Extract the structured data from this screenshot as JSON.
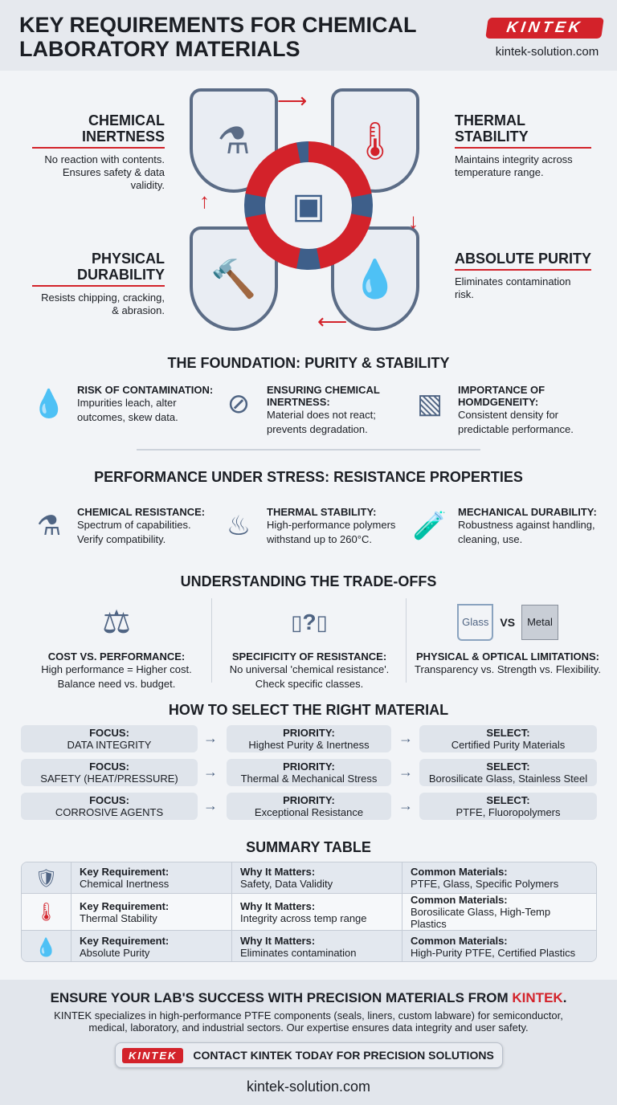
{
  "header": {
    "title": "KEY REQUIREMENTS FOR CHEMICAL LABORATORY MATERIALS",
    "logo": "KINTEK",
    "website": "kintek-solution.com"
  },
  "requirements": [
    {
      "title": "CHEMICAL INERTNESS",
      "desc": "No reaction with contents. Ensures safety & data validity.",
      "icon": "flask-prohibited-icon"
    },
    {
      "title": "THERMAL STABILITY",
      "desc": "Maintains integrity across temperature range.",
      "icon": "thermometer-icon"
    },
    {
      "title": "PHYSICAL DURABILITY",
      "desc": "Resists chipping, cracking, & abrasion.",
      "icon": "hammer-icon"
    },
    {
      "title": "ABSOLUTE PURITY",
      "desc": "Eliminates contamination risk.",
      "icon": "droplet-icon"
    }
  ],
  "foundation": {
    "heading": "THE FOUNDATION: PURITY & STABILITY",
    "items": [
      {
        "title": "RISK OF CONTAMINATION:",
        "desc": "Impurities leach, alter outcomes, skew data."
      },
      {
        "title": "ENSURING CHEMICAL INERTNESS:",
        "desc": "Material does not react; prevents degradation."
      },
      {
        "title": "IMPORTANCE OF HOMDGENEITY:",
        "desc": "Consistent density for predictable performance."
      }
    ]
  },
  "performance": {
    "heading": "PERFORMANCE UNDER STRESS: RESISTANCE PROPERTIES",
    "items": [
      {
        "title": "CHEMICAL RESISTANCE:",
        "desc": "Spectrum of capabilities. Verify compatibility."
      },
      {
        "title": "THERMAL STABILITY:",
        "desc": "High-performance polymers withstand up to 260°C."
      },
      {
        "title": "MECHANICAL DURABILITY:",
        "desc": "Robustness against handling, cleaning, use."
      }
    ]
  },
  "tradeoffs": {
    "heading": "UNDERSTANDING THE TRADE-OFFS",
    "items": [
      {
        "title": "COST VS. PERFORMANCE:",
        "desc": "High performance = Higher cost. Balance need vs. budget."
      },
      {
        "title": "SPECIFICITY OF RESISTANCE:",
        "desc": "No universal 'chemical resistance'. Check specific classes."
      },
      {
        "title": "PHYSICAL & OPTICAL LIMITATIONS:",
        "desc": "Transparency vs. Strength vs. Flexibility."
      }
    ],
    "icon_labels": {
      "q": "?",
      "glass": "Glass",
      "vs": "VS",
      "metal": "Metal"
    }
  },
  "select": {
    "heading": "HOW TO SELECT THE RIGHT MATERIAL",
    "rows": [
      {
        "focus_label": "FOCUS:",
        "focus": "DATA INTEGRITY",
        "priority_label": "PRIORITY:",
        "priority": "Highest Purity & Inertness",
        "select_label": "SELECT:",
        "select": "Certified Purity Materials"
      },
      {
        "focus_label": "FOCUS:",
        "focus": "SAFETY (HEAT/PRESSURE)",
        "priority_label": "PRIORITY:",
        "priority": "Thermal & Mechanical Stress",
        "select_label": "SELECT:",
        "select": "Borosilicate Glass, Stainless Steel"
      },
      {
        "focus_label": "FOCUS:",
        "focus": "CORROSIVE AGENTS",
        "priority_label": "PRIORITY:",
        "priority": "Exceptional Resistance",
        "select_label": "SELECT:",
        "select": "PTFE, Fluoropolymers"
      }
    ]
  },
  "summary": {
    "heading": "SUMMARY TABLE",
    "rows": [
      {
        "req_label": "Key Requirement:",
        "req": "Chemical Inertness",
        "why_label": "Why It Matters:",
        "why": "Safety, Data Validity",
        "mat_label": "Common Materials:",
        "mat": "PTFE, Glass, Specific Polymers"
      },
      {
        "req_label": "Key Requirement:",
        "req": "Thermal Stability",
        "why_label": "Why It Matters:",
        "why": "Integrity across temp range",
        "mat_label": "Common Materials:",
        "mat": "Borosilicate Glass, High-Temp Plastics"
      },
      {
        "req_label": "Key Requirement:",
        "req": "Absolute Purity",
        "why_label": "Why It Matters:",
        "why": "Eliminates contamination",
        "mat_label": "Common Materials:",
        "mat": "High-Purity PTFE, Certified Plastics"
      }
    ]
  },
  "footer": {
    "heading_pre": "ENSURE YOUR LAB'S SUCCESS WITH PRECISION MATERIALS FROM ",
    "heading_brand": "KINTEK",
    "heading_post": ".",
    "text": "KINTEK specializes in high-performance PTFE components (seals, liners, custom labware) for semiconductor, medical, laboratory, and industrial sectors. Our expertise ensures data integrity and user safety.",
    "cta_logo": "KINTEK",
    "cta": "CONTACT KINTEK TODAY FOR PRECISION SOLUTIONS",
    "website": "kintek-solution.com"
  },
  "colors": {
    "accent": "#d3222a",
    "primary": "#3e5f8a",
    "background": "#f2f4f7"
  }
}
